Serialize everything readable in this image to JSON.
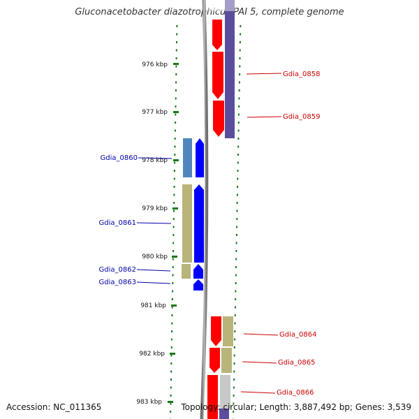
{
  "title": "Gluconacetobacter diazotrophicus PAI 5, complete genome",
  "footer": {
    "accession": "Accession: NC_011365",
    "summary": "Topology: circular; Length: 3,887,492 bp; Genes: 3,539"
  },
  "scale": {
    "unit": "kbp",
    "labels": [
      "976 kbp",
      "977 kbp",
      "978 kbp",
      "979 kbp",
      "980 kbp",
      "981 kbp",
      "982 kbp",
      "983 kbp"
    ]
  },
  "colors": {
    "red": "#ff0000",
    "navy": "#5a4e9c",
    "blue": "#0000ff",
    "steelblue": "#4f86bd",
    "olive": "#b8b47a",
    "gray": "#c8c8c8",
    "tick": "#1a7a1a",
    "label_red": "#cc0000",
    "label_blue": "#0000aa"
  },
  "genes": [
    {
      "label": "Gdia_0858",
      "side": "right",
      "strand": "forward",
      "color": "red"
    },
    {
      "label": "Gdia_0859",
      "side": "right",
      "strand": "forward",
      "color": "red"
    },
    {
      "label": "Gdia_0860",
      "side": "left",
      "strand": "reverse",
      "color": "blue"
    },
    {
      "label": "Gdia_0861",
      "side": "left",
      "strand": "reverse",
      "color": "blue"
    },
    {
      "label": "Gdia_0862",
      "side": "left",
      "strand": "reverse",
      "color": "blue"
    },
    {
      "label": "Gdia_0863",
      "side": "left",
      "strand": "reverse",
      "color": "blue"
    },
    {
      "label": "Gdia_0864",
      "side": "right",
      "strand": "forward",
      "color": "red"
    },
    {
      "label": "Gdia_0865",
      "side": "right",
      "strand": "forward",
      "color": "red"
    },
    {
      "label": "Gdia_0866",
      "side": "right",
      "strand": "forward",
      "color": "red"
    }
  ]
}
